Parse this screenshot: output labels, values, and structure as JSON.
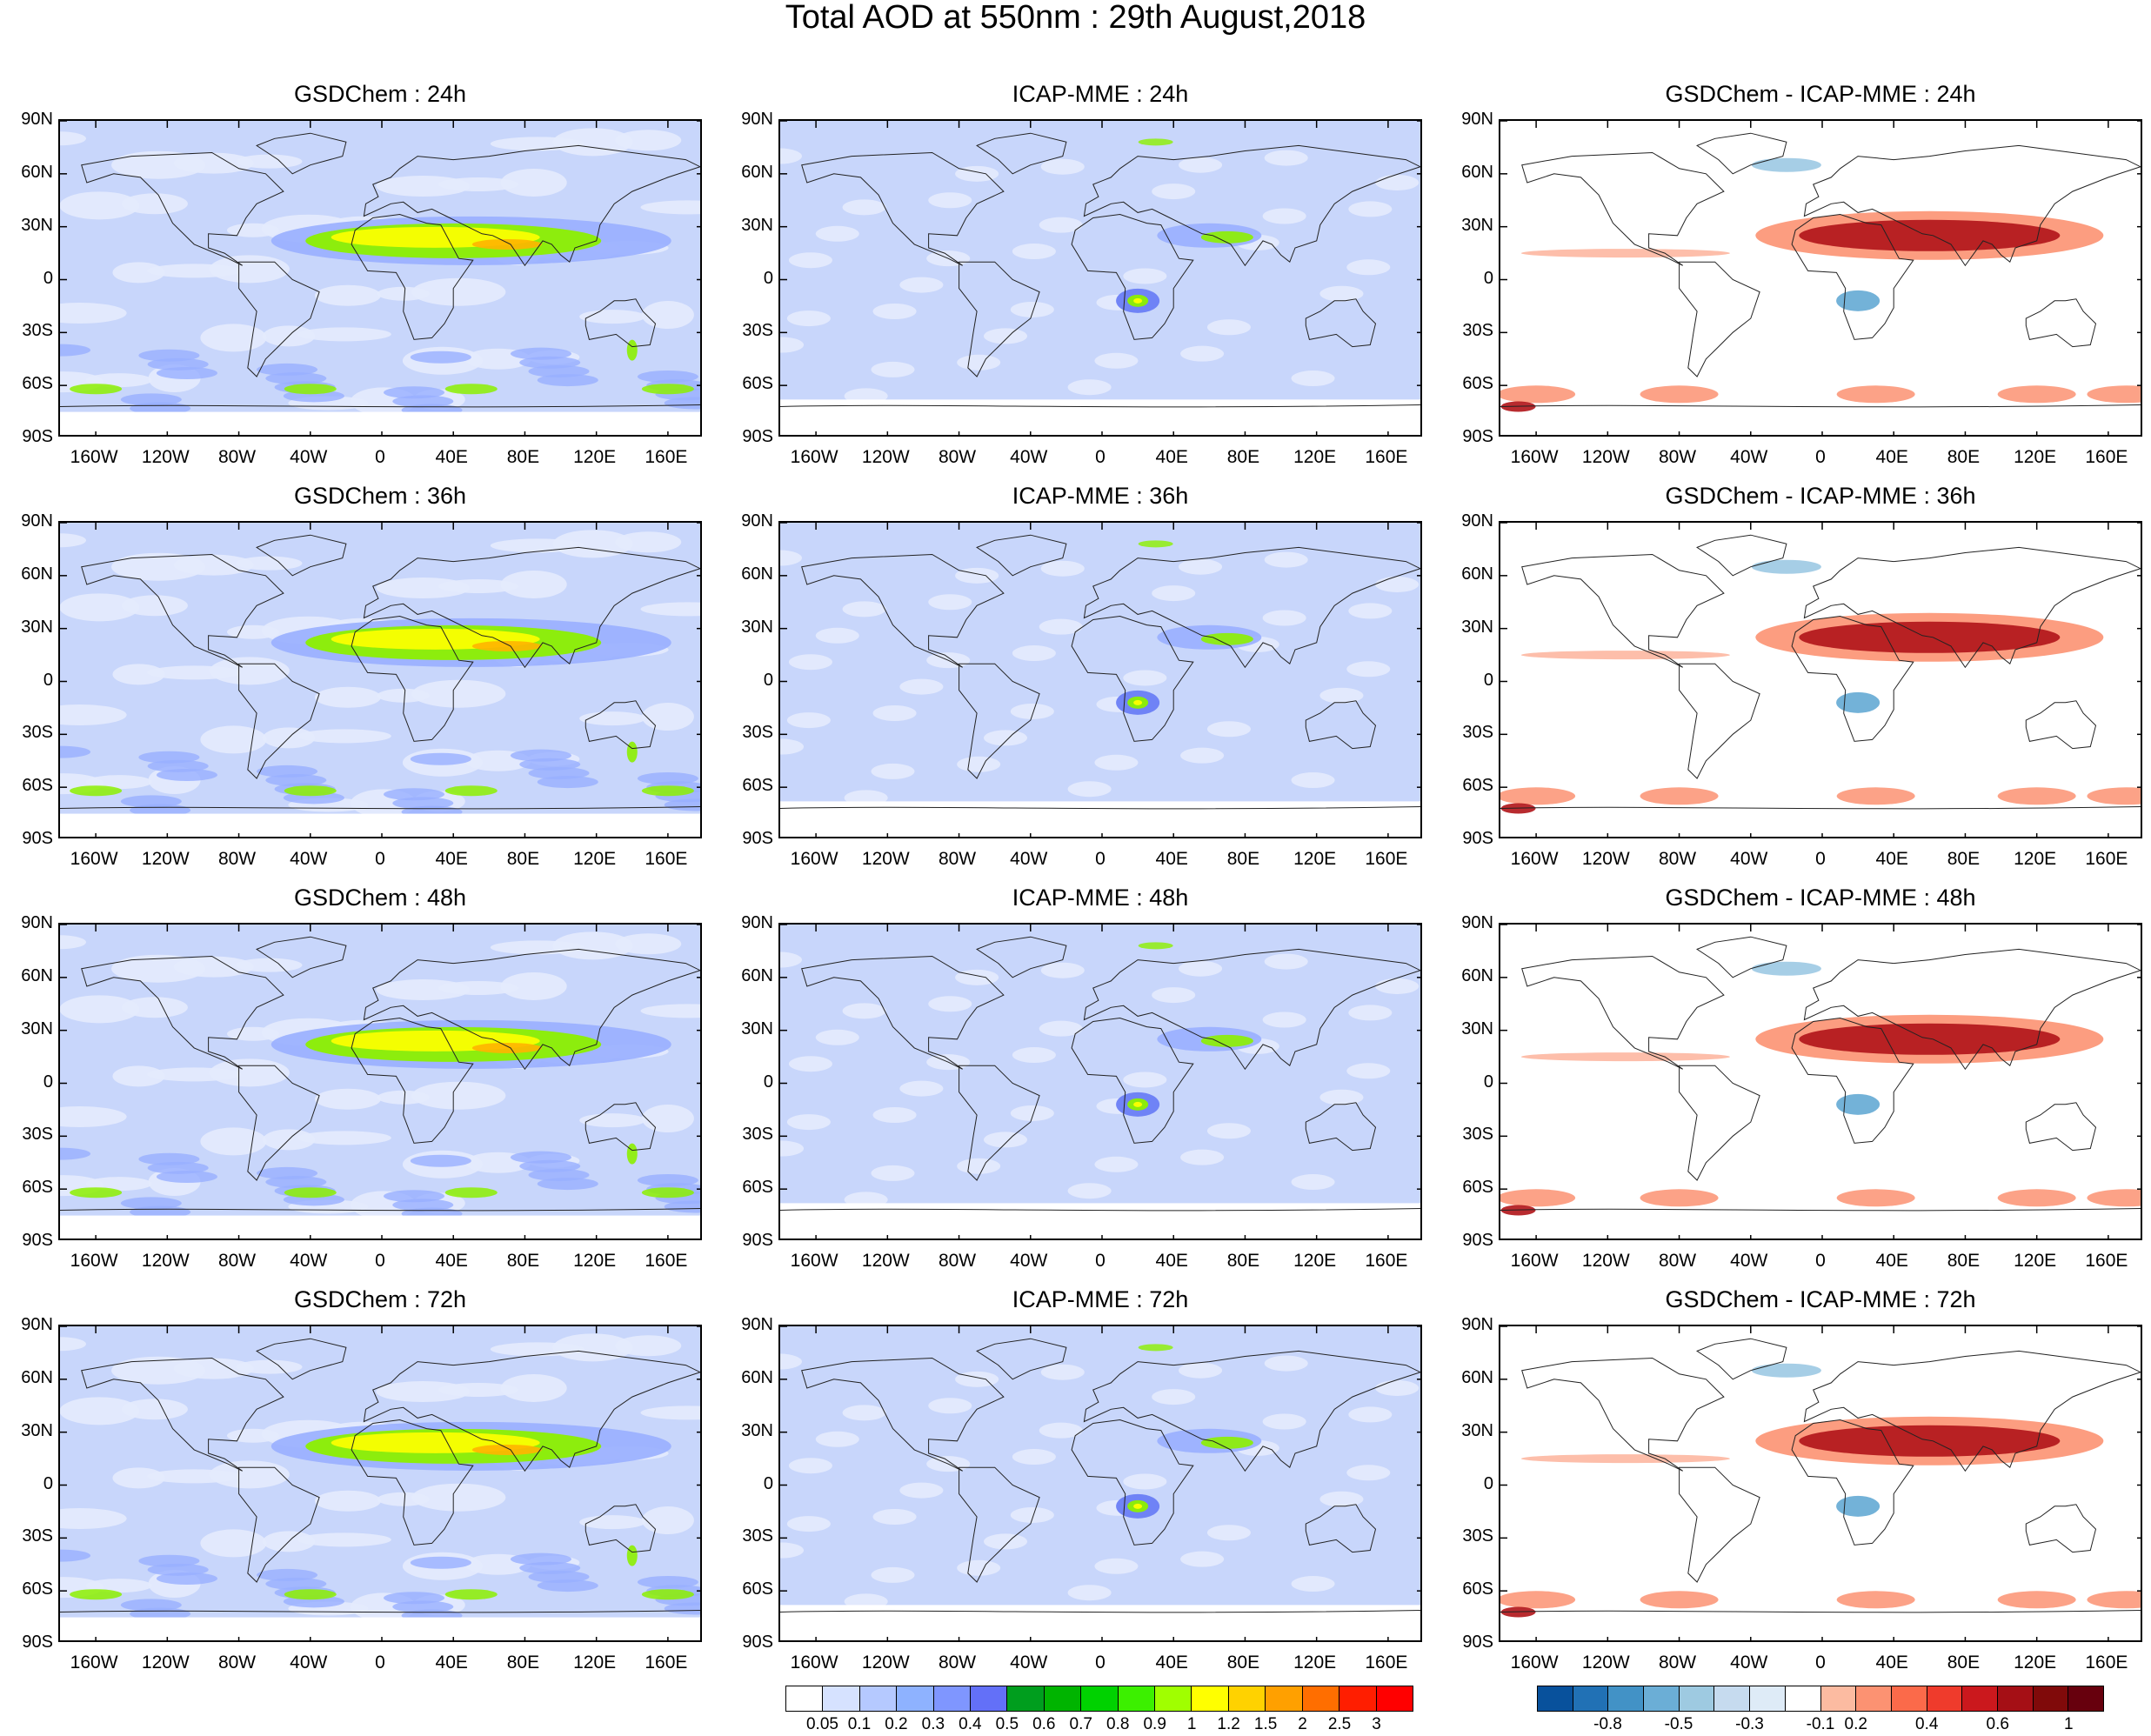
{
  "title": "Total AOD at 550nm : 29th August,2018",
  "lat_labels": [
    "90N",
    "60N",
    "30N",
    "0",
    "30S",
    "60S",
    "90S"
  ],
  "lon_labels": [
    "160W",
    "120W",
    "80W",
    "40W",
    "0",
    "40E",
    "80E",
    "120E",
    "160E"
  ],
  "lat_values": [
    90,
    60,
    30,
    0,
    -30,
    -60,
    -90
  ],
  "lon_values": [
    -160,
    -120,
    -80,
    -40,
    0,
    40,
    80,
    120,
    160
  ],
  "rows": [
    {
      "forecast": "24h",
      "titles": [
        "GSDChem : 24h",
        "ICAP-MME : 24h",
        "GSDChem - ICAP-MME : 24h"
      ]
    },
    {
      "forecast": "36h",
      "titles": [
        "GSDChem : 36h",
        "ICAP-MME : 36h",
        "GSDChem - ICAP-MME : 36h"
      ]
    },
    {
      "forecast": "48h",
      "titles": [
        "GSDChem : 48h",
        "ICAP-MME : 48h",
        "GSDChem - ICAP-MME : 48h"
      ]
    },
    {
      "forecast": "72h",
      "titles": [
        "GSDChem : 72h",
        "ICAP-MME : 72h",
        "GSDChem - ICAP-MME : 72h"
      ]
    }
  ],
  "aod_colorbar": {
    "labels": [
      "0.05",
      "0.1",
      "0.2",
      "0.3",
      "0.4",
      "0.5",
      "0.6",
      "0.7",
      "0.8",
      "0.9",
      "1",
      "1.2",
      "1.5",
      "2",
      "2.5",
      "3"
    ],
    "colors": [
      "#ffffff",
      "#d6e2ff",
      "#b5c9ff",
      "#8eb2ff",
      "#7f96ff",
      "#6370f8",
      "#009e1e",
      "#00b400",
      "#00d200",
      "#3cf000",
      "#a0ff00",
      "#ffff00",
      "#ffd200",
      "#ffa000",
      "#ff6e00",
      "#ff1e00",
      "#ff0000"
    ]
  },
  "diff_colorbar": {
    "labels": [
      "-0.8",
      "-0.5",
      "-0.3",
      "-0.1",
      "0.2",
      "0.4",
      "0.6",
      "1"
    ],
    "colors": [
      "#08519c",
      "#2171b5",
      "#4292c6",
      "#6baed6",
      "#9ecae1",
      "#c6dbef",
      "#deebf7",
      "#ffffff",
      "#fcbba1",
      "#fc9272",
      "#fb6a4a",
      "#ef3b2c",
      "#cb181d",
      "#a50f15",
      "#800a0a",
      "#67000d"
    ]
  },
  "background_colors": {
    "aod_base": "#c8d6fb",
    "aod_light": "#e4ebfd",
    "aod_mid": "#99afff",
    "aod_dark": "#6a7ef5",
    "dust_green": "#8cf000",
    "dust_yellow": "#ffff00",
    "dust_orange": "#ffb400",
    "diff_red": "#fc9272",
    "diff_dark": "#b01418",
    "diff_blue": "#6baed6"
  }
}
